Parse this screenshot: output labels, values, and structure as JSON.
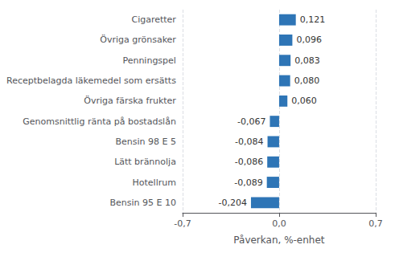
{
  "chart_data": {
    "type": "bar",
    "orientation": "horizontal",
    "xlabel": "Påverkan, %-enhet",
    "categories": [
      "Bensin 95 E 10",
      "Hotellrum",
      "Lätt brännolja",
      "Bensin 98 E 5",
      "Genomsnittlig ränta på bostadslån",
      "Övriga färska frukter",
      "Receptbelagda läkemedel som ersätts",
      "Penningspel",
      "Övriga grönsaker",
      "Cigaretter"
    ],
    "values": [
      -0.204,
      -0.089,
      -0.086,
      -0.084,
      -0.067,
      0.06,
      0.08,
      0.083,
      0.096,
      0.121
    ],
    "value_labels": [
      "-0,204",
      "-0,089",
      "-0,086",
      "-0,084",
      "-0,067",
      "0,060",
      "0,080",
      "0,083",
      "0,096",
      "0,121"
    ],
    "data_labels": true,
    "color": "#2e75b6",
    "xlim": [
      -0.7,
      0.7
    ],
    "xticks": [
      {
        "value": -0.7,
        "label": "-0,7"
      },
      {
        "value": 0.0,
        "label": "0,0"
      },
      {
        "value": 0.7,
        "label": "0,7"
      }
    ],
    "grid": true
  }
}
